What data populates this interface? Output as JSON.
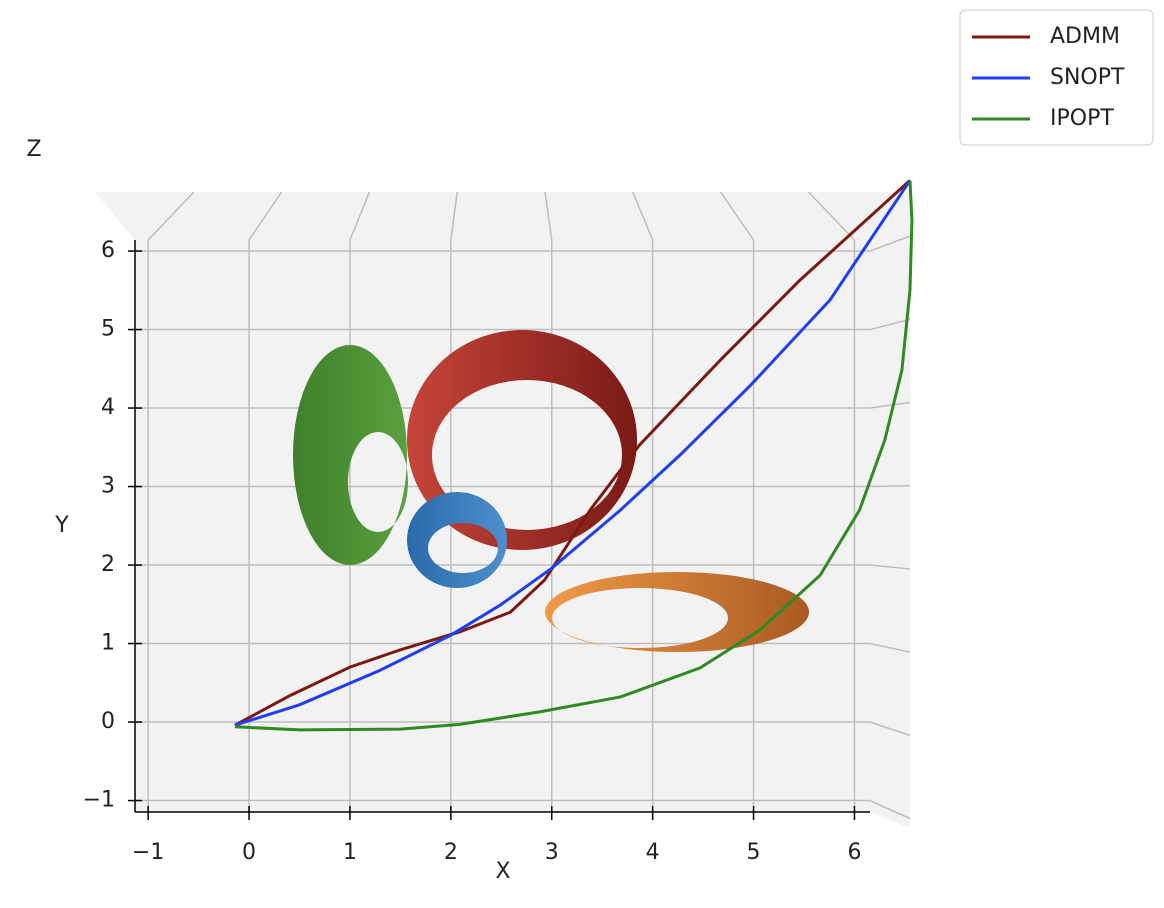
{
  "chart_data": {
    "type": "line",
    "x_label": "X",
    "y_label": "Y",
    "z_label": "Z",
    "xlim": [
      -1.15,
      6.6
    ],
    "ylim": [
      -1.1,
      6.9
    ],
    "xticks": [
      {
        "value": -1,
        "label": "−1"
      },
      0,
      1,
      2,
      3,
      4,
      5,
      6
    ],
    "yticks": [
      {
        "value": -1,
        "label": "−1"
      },
      0,
      1,
      2,
      3,
      4,
      5,
      6
    ],
    "grid": true,
    "legend": "outside-upper-right",
    "series": [
      {
        "name": "ADMM",
        "color": "#7b1a10",
        "x": [
          -0.14,
          0.41,
          1.0,
          1.5,
          2.09,
          2.59,
          2.93,
          3.38,
          3.87,
          4.67,
          5.46,
          6.55
        ],
        "values": [
          -0.04,
          0.34,
          0.7,
          0.92,
          1.15,
          1.4,
          1.81,
          2.7,
          3.53,
          4.61,
          5.63,
          6.9
        ]
      },
      {
        "name": "SNOPT",
        "color": "#1f3ff0",
        "x": [
          -0.14,
          0.5,
          1.3,
          1.99,
          2.49,
          3.0,
          3.68,
          4.27,
          4.97,
          5.76,
          6.55
        ],
        "values": [
          -0.04,
          0.22,
          0.66,
          1.1,
          1.49,
          1.96,
          2.7,
          3.4,
          4.29,
          5.38,
          6.9
        ]
      },
      {
        "name": "IPOPT",
        "color": "#2f8a22",
        "x": [
          -0.14,
          0.5,
          1.5,
          2.09,
          2.88,
          3.68,
          4.47,
          5.06,
          5.66,
          6.05,
          6.3,
          6.47,
          6.55,
          6.57,
          6.55
        ],
        "values": [
          -0.06,
          -0.1,
          -0.09,
          -0.03,
          0.13,
          0.32,
          0.69,
          1.17,
          1.87,
          2.7,
          3.59,
          4.48,
          5.5,
          6.39,
          6.9
        ]
      }
    ]
  }
}
